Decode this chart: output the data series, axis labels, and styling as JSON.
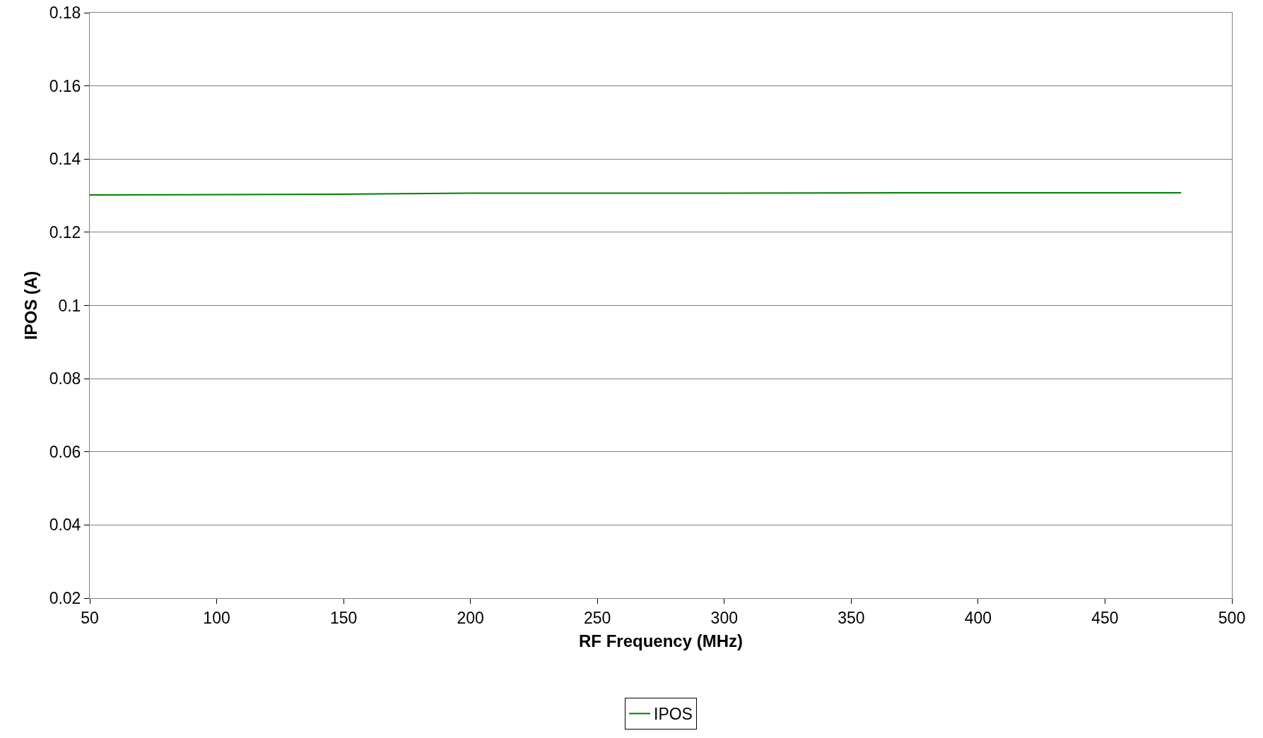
{
  "chart_data": {
    "type": "line",
    "xlabel": "RF Frequency (MHz)",
    "ylabel": "IPOS (A)",
    "x": [
      50,
      150,
      200,
      300,
      400,
      480
    ],
    "series": [
      {
        "name": "IPOS",
        "color": "#008000",
        "values": [
          0.1302,
          0.1304,
          0.1307,
          0.1307,
          0.1308,
          0.1308
        ]
      }
    ],
    "xlim": [
      50,
      500
    ],
    "xticks": [
      50,
      100,
      150,
      200,
      250,
      300,
      350,
      400,
      450,
      500
    ],
    "ylim": [
      0.02,
      0.18
    ],
    "yticks": [
      0.02,
      0.04,
      0.06,
      0.08,
      {
        "value": 0.1,
        "label": "0.1"
      },
      0.12,
      0.14,
      0.16,
      0.18
    ],
    "grid": "y",
    "legend": "bottom",
    "marker": "none",
    "line_style": "solid"
  }
}
